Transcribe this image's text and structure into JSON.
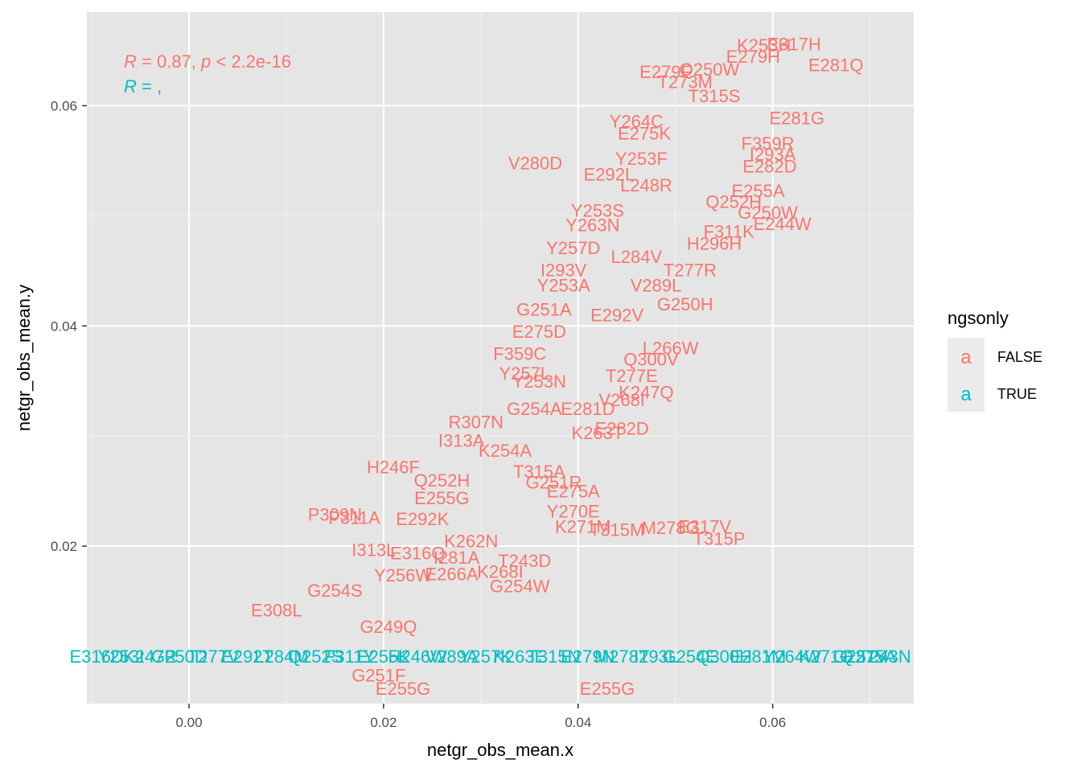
{
  "chart_data": {
    "type": "scatter",
    "xlabel": "netgr_obs_mean.x",
    "ylabel": "netgr_obs_mean.y",
    "xlim": [
      -0.0105,
      0.0745
    ],
    "ylim": [
      0.0057,
      0.0685
    ],
    "x_ticks": [
      0.0,
      0.02,
      0.04,
      0.06
    ],
    "x_tick_labels": [
      "0.00",
      "0.02",
      "0.04",
      "0.06"
    ],
    "y_ticks": [
      0.02,
      0.04,
      0.06
    ],
    "y_tick_labels": [
      "0.02",
      "0.04",
      "0.06"
    ],
    "grid": true,
    "panel_background": "#e5e5e5",
    "legend": {
      "title": "ngsonly",
      "position": "right",
      "glyph": "a",
      "entries": [
        {
          "label": "FALSE",
          "color": "#F8766D"
        },
        {
          "label": "TRUE",
          "color": "#00BFC4"
        }
      ]
    },
    "annotations": [
      {
        "series": "FALSE",
        "parts": [
          [
            "R",
            "italic"
          ],
          [
            " = 0.87, ",
            "normal"
          ],
          [
            "p",
            "italic"
          ],
          [
            " < 2.2e-16",
            "normal"
          ]
        ],
        "color": "#F8766D"
      },
      {
        "series": "TRUE",
        "parts": [
          [
            "R",
            "italic"
          ],
          [
            " = ,",
            "normal"
          ]
        ],
        "color": "#00BFC4"
      }
    ],
    "series": [
      {
        "name": "FALSE",
        "color": "#F8766D",
        "labeled_points": [
          {
            "label": "E317H",
            "x": 0.0622,
            "y": 0.0656
          },
          {
            "label": "K253H",
            "x": 0.0591,
            "y": 0.0655
          },
          {
            "label": "E279H",
            "x": 0.058,
            "y": 0.0645
          },
          {
            "label": "E281Q",
            "x": 0.0665,
            "y": 0.0637
          },
          {
            "label": "E279F",
            "x": 0.049,
            "y": 0.0631
          },
          {
            "label": "Q250W",
            "x": 0.0535,
            "y": 0.0633
          },
          {
            "label": "T273M",
            "x": 0.051,
            "y": 0.0622
          },
          {
            "label": "T315S",
            "x": 0.054,
            "y": 0.0609
          },
          {
            "label": "E281G",
            "x": 0.0625,
            "y": 0.0589
          },
          {
            "label": "Y264C",
            "x": 0.046,
            "y": 0.0586
          },
          {
            "label": "E275K",
            "x": 0.0468,
            "y": 0.0575
          },
          {
            "label": "V280D",
            "x": 0.0356,
            "y": 0.0548
          },
          {
            "label": "F359R",
            "x": 0.0595,
            "y": 0.0566
          },
          {
            "label": "I293A",
            "x": 0.06,
            "y": 0.0556
          },
          {
            "label": "E282D",
            "x": 0.0597,
            "y": 0.0545
          },
          {
            "label": "E292L",
            "x": 0.0432,
            "y": 0.0538
          },
          {
            "label": "Y253F",
            "x": 0.0465,
            "y": 0.0552
          },
          {
            "label": "L248R",
            "x": 0.047,
            "y": 0.0528
          },
          {
            "label": "Q252H",
            "x": 0.056,
            "y": 0.0513
          },
          {
            "label": "E255A",
            "x": 0.0585,
            "y": 0.0523
          },
          {
            "label": "G250W",
            "x": 0.0595,
            "y": 0.0503
          },
          {
            "label": "E244W",
            "x": 0.061,
            "y": 0.0493
          },
          {
            "label": "Y253S",
            "x": 0.042,
            "y": 0.0505
          },
          {
            "label": "F311K",
            "x": 0.0555,
            "y": 0.0486
          },
          {
            "label": "Y263N",
            "x": 0.0415,
            "y": 0.0492
          },
          {
            "label": "H296H",
            "x": 0.054,
            "y": 0.0475
          },
          {
            "label": "Y257D",
            "x": 0.0395,
            "y": 0.0471
          },
          {
            "label": "L284V",
            "x": 0.046,
            "y": 0.0463
          },
          {
            "label": "I293V",
            "x": 0.0385,
            "y": 0.0451
          },
          {
            "label": "T277R",
            "x": 0.0515,
            "y": 0.0451
          },
          {
            "label": "Y253A",
            "x": 0.0385,
            "y": 0.0437
          },
          {
            "label": "V289L",
            "x": 0.048,
            "y": 0.0437
          },
          {
            "label": "G250H",
            "x": 0.051,
            "y": 0.042
          },
          {
            "label": "G251A",
            "x": 0.0365,
            "y": 0.0415
          },
          {
            "label": "E292V",
            "x": 0.044,
            "y": 0.041
          },
          {
            "label": "E275D",
            "x": 0.036,
            "y": 0.0395
          },
          {
            "label": "L266W",
            "x": 0.0495,
            "y": 0.038
          },
          {
            "label": "F359C",
            "x": 0.034,
            "y": 0.0375
          },
          {
            "label": "Q300V",
            "x": 0.0475,
            "y": 0.037
          },
          {
            "label": "Y257L",
            "x": 0.0345,
            "y": 0.0357
          },
          {
            "label": "Y253N",
            "x": 0.036,
            "y": 0.035
          },
          {
            "label": "T277E",
            "x": 0.0455,
            "y": 0.0355
          },
          {
            "label": "K247Q",
            "x": 0.047,
            "y": 0.034
          },
          {
            "label": "V268I",
            "x": 0.0445,
            "y": 0.0333
          },
          {
            "label": "E281D",
            "x": 0.041,
            "y": 0.0325
          },
          {
            "label": "G254A",
            "x": 0.0355,
            "y": 0.0325
          },
          {
            "label": "R307N",
            "x": 0.0295,
            "y": 0.0313
          },
          {
            "label": "E282D",
            "x": 0.0445,
            "y": 0.0307
          },
          {
            "label": "K263T",
            "x": 0.042,
            "y": 0.0303
          },
          {
            "label": "I313A",
            "x": 0.028,
            "y": 0.0296
          },
          {
            "label": "H246F",
            "x": 0.021,
            "y": 0.0272
          },
          {
            "label": "K254A",
            "x": 0.0325,
            "y": 0.0287
          },
          {
            "label": "T315A",
            "x": 0.036,
            "y": 0.0268
          },
          {
            "label": "Q252H",
            "x": 0.026,
            "y": 0.026
          },
          {
            "label": "G251R",
            "x": 0.0375,
            "y": 0.0258
          },
          {
            "label": "E275A",
            "x": 0.0395,
            "y": 0.025
          },
          {
            "label": "E255G",
            "x": 0.026,
            "y": 0.0244
          },
          {
            "label": "P309N",
            "x": 0.015,
            "y": 0.0229
          },
          {
            "label": "P311A",
            "x": 0.017,
            "y": 0.0226
          },
          {
            "label": "E292K",
            "x": 0.024,
            "y": 0.0225
          },
          {
            "label": "Y270E",
            "x": 0.0395,
            "y": 0.0232
          },
          {
            "label": "K271M",
            "x": 0.0405,
            "y": 0.0218
          },
          {
            "label": "T315M",
            "x": 0.044,
            "y": 0.0215
          },
          {
            "label": "M278G",
            "x": 0.0495,
            "y": 0.0217
          },
          {
            "label": "E317V",
            "x": 0.053,
            "y": 0.0218
          },
          {
            "label": "T315P",
            "x": 0.0545,
            "y": 0.0207
          },
          {
            "label": "K262N",
            "x": 0.029,
            "y": 0.0205
          },
          {
            "label": "I313L",
            "x": 0.019,
            "y": 0.0197
          },
          {
            "label": "E316Q",
            "x": 0.0235,
            "y": 0.0194
          },
          {
            "label": "T243D",
            "x": 0.0345,
            "y": 0.0187
          },
          {
            "label": "I281A",
            "x": 0.0275,
            "y": 0.019
          },
          {
            "label": "Y256W",
            "x": 0.022,
            "y": 0.0174
          },
          {
            "label": "E266A",
            "x": 0.027,
            "y": 0.0175
          },
          {
            "label": "K268I",
            "x": 0.032,
            "y": 0.0177
          },
          {
            "label": "G254W",
            "x": 0.034,
            "y": 0.0164
          },
          {
            "label": "G254S",
            "x": 0.015,
            "y": 0.016
          },
          {
            "label": "E308L",
            "x": 0.009,
            "y": 0.0142
          },
          {
            "label": "G249Q",
            "x": 0.0205,
            "y": 0.0127
          },
          {
            "label": "G251F",
            "x": 0.0195,
            "y": 0.0083
          },
          {
            "label": "E255G",
            "x": 0.022,
            "y": 0.0071
          },
          {
            "label": "E255G",
            "x": 0.043,
            "y": 0.0071
          }
        ]
      },
      {
        "name": "TRUE",
        "color": "#00BFC4",
        "labeled_points": [
          {
            "label": "E316D",
            "x": -0.0095,
            "y": 0.01
          },
          {
            "label": "Y253I",
            "x": -0.007,
            "y": 0.01
          },
          {
            "label": "K247R",
            "x": -0.004,
            "y": 0.01
          },
          {
            "label": "G250D",
            "x": -0.001,
            "y": 0.01
          },
          {
            "label": "T277V",
            "x": 0.0025,
            "y": 0.01
          },
          {
            "label": "E292T",
            "x": 0.006,
            "y": 0.01
          },
          {
            "label": "L284M",
            "x": 0.0095,
            "y": 0.01
          },
          {
            "label": "Q252S",
            "x": 0.013,
            "y": 0.01
          },
          {
            "label": "F311Y",
            "x": 0.0165,
            "y": 0.01
          },
          {
            "label": "E255K",
            "x": 0.02,
            "y": 0.01
          },
          {
            "label": "H246W",
            "x": 0.0235,
            "y": 0.01
          },
          {
            "label": "V289A",
            "x": 0.027,
            "y": 0.01
          },
          {
            "label": "Y257K",
            "x": 0.0305,
            "y": 0.01
          },
          {
            "label": "K263E",
            "x": 0.034,
            "y": 0.01
          },
          {
            "label": "T315N",
            "x": 0.0375,
            "y": 0.01
          },
          {
            "label": "E279N",
            "x": 0.041,
            "y": 0.01
          },
          {
            "label": "M278T",
            "x": 0.0445,
            "y": 0.01
          },
          {
            "label": "I293L",
            "x": 0.048,
            "y": 0.01
          },
          {
            "label": "G254E",
            "x": 0.0515,
            "y": 0.01
          },
          {
            "label": "Q300H",
            "x": 0.055,
            "y": 0.01
          },
          {
            "label": "E281M",
            "x": 0.0585,
            "y": 0.01
          },
          {
            "label": "Y264W",
            "x": 0.062,
            "y": 0.01
          },
          {
            "label": "K271Q",
            "x": 0.0655,
            "y": 0.01
          },
          {
            "label": "G251V",
            "x": 0.069,
            "y": 0.01
          },
          {
            "label": "T243N",
            "x": 0.0715,
            "y": 0.01
          },
          {
            "label": "E275A",
            "x": 0.07,
            "y": 0.01
          }
        ]
      }
    ]
  }
}
